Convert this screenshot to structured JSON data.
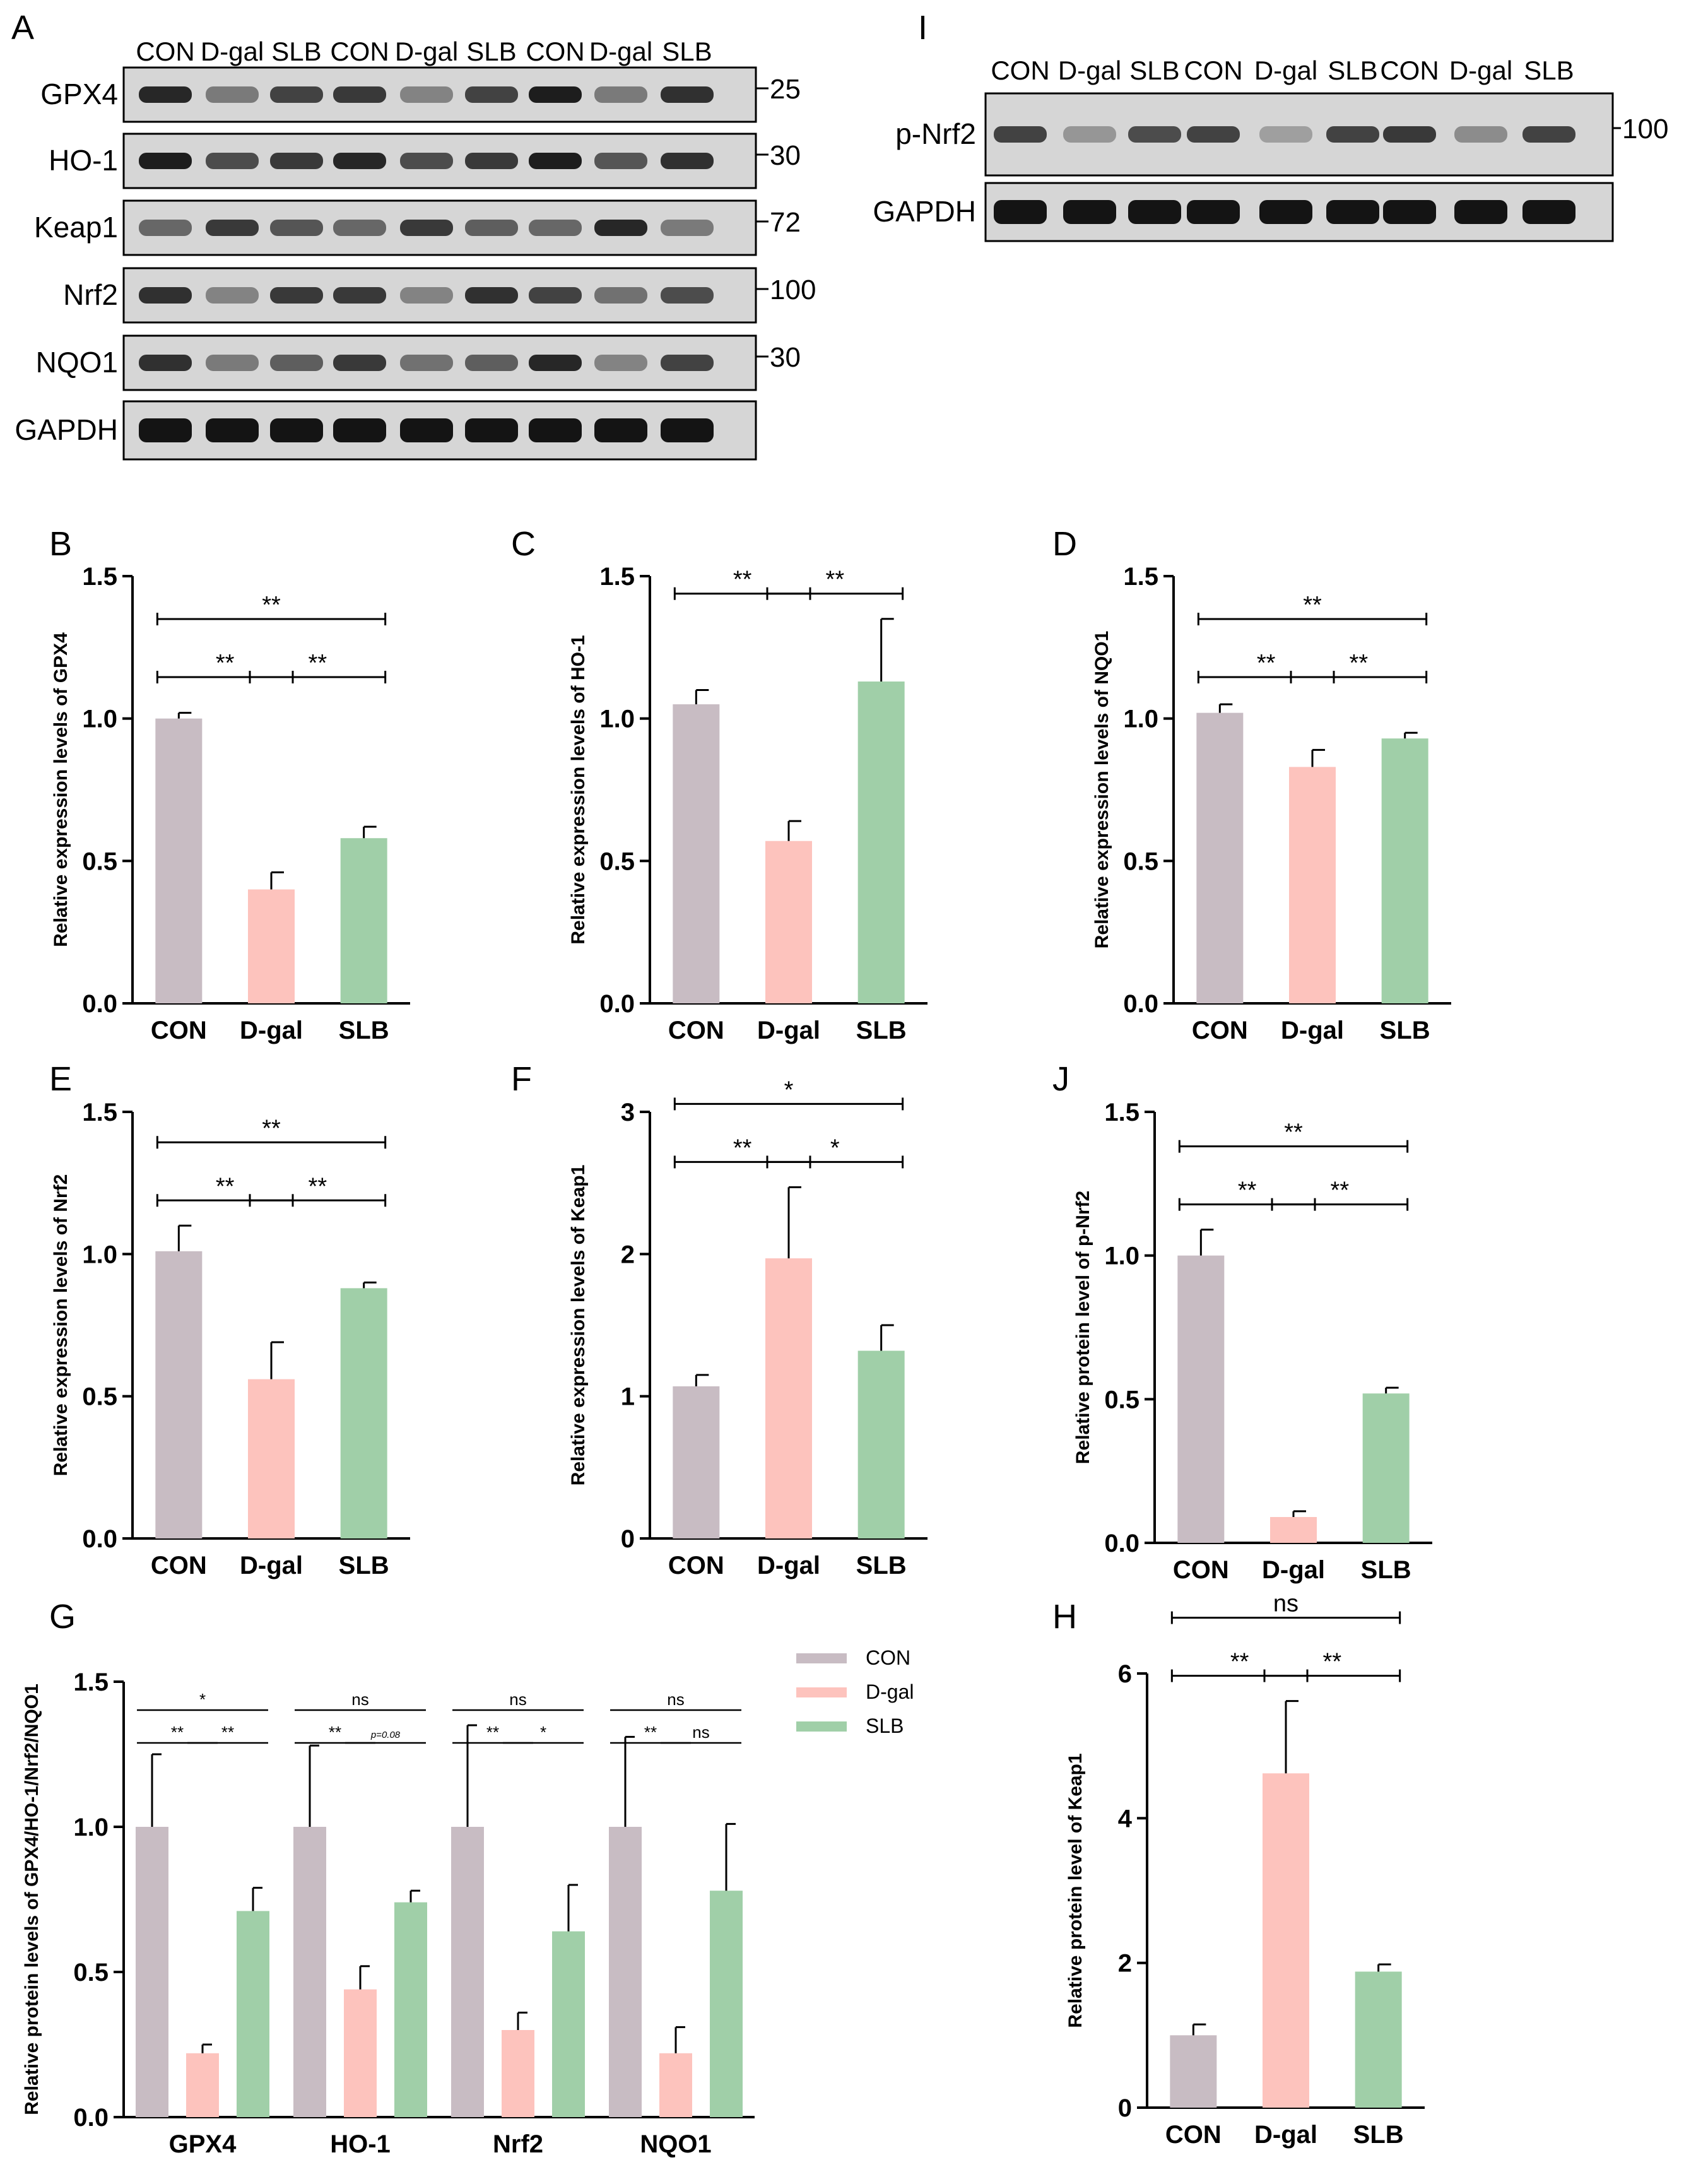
{
  "colors": {
    "CON": "#c8bcc3",
    "D-gal": "#fdc3bd",
    "SLB": "#a0cfa8",
    "blot_bg": "#d6d6d6",
    "band": "#1a1a1a"
  },
  "blotA": {
    "letter": "A",
    "columns": [
      "CON",
      "D-gal",
      "SLB",
      "CON",
      "D-gal",
      "SLB",
      "CON",
      "D-gal",
      "SLB"
    ],
    "rows": [
      {
        "label": "GPX4",
        "mw": "25",
        "intensity": [
          0.9,
          0.45,
          0.75,
          0.8,
          0.4,
          0.75,
          0.95,
          0.45,
          0.85
        ]
      },
      {
        "label": "HO-1",
        "mw": "30",
        "intensity": [
          0.95,
          0.7,
          0.8,
          0.9,
          0.7,
          0.8,
          0.95,
          0.65,
          0.85
        ]
      },
      {
        "label": "Keap1",
        "mw": "72",
        "intensity": [
          0.55,
          0.8,
          0.65,
          0.55,
          0.8,
          0.6,
          0.55,
          0.9,
          0.45
        ]
      },
      {
        "label": "Nrf2",
        "mw": "100",
        "intensity": [
          0.85,
          0.4,
          0.8,
          0.8,
          0.4,
          0.85,
          0.75,
          0.5,
          0.7
        ]
      },
      {
        "label": "NQO1",
        "mw": "30",
        "intensity": [
          0.85,
          0.45,
          0.6,
          0.8,
          0.5,
          0.6,
          0.9,
          0.4,
          0.75
        ]
      },
      {
        "label": "GAPDH",
        "mw": "",
        "intensity": [
          1,
          1,
          1,
          1,
          1,
          1,
          1,
          1,
          1
        ]
      }
    ]
  },
  "blotI": {
    "letter": "I",
    "columns": [
      "CON",
      "D-gal",
      "SLB",
      "CON",
      "D-gal",
      "SLB",
      "CON",
      "D-gal",
      "SLB"
    ],
    "rows": [
      {
        "label": "p-Nrf2",
        "mw": "100",
        "intensity": [
          0.75,
          0.3,
          0.7,
          0.75,
          0.25,
          0.75,
          0.8,
          0.35,
          0.75
        ]
      },
      {
        "label": "GAPDH",
        "mw": "",
        "intensity": [
          1,
          1,
          1,
          1,
          1,
          1,
          1,
          1,
          1
        ]
      }
    ]
  },
  "chart_data": [
    {
      "letter": "B",
      "type": "bar",
      "ylabel": "Relative expression levels of GPX4",
      "categories": [
        "CON",
        "D-gal",
        "SLB"
      ],
      "values": [
        1.0,
        0.4,
        0.58
      ],
      "errors": [
        0.02,
        0.06,
        0.04
      ],
      "ylim": [
        0,
        1.5
      ],
      "yticks": [
        "0.0",
        "0.5",
        "1.0",
        "1.5"
      ],
      "sig": [
        {
          "from": 0,
          "to": 1,
          "label": "**"
        },
        {
          "from": 1,
          "to": 2,
          "label": "**"
        },
        {
          "from": 0,
          "to": 2,
          "label": "**"
        }
      ]
    },
    {
      "letter": "C",
      "type": "bar",
      "ylabel": "Relative expression levels of HO-1",
      "categories": [
        "CON",
        "D-gal",
        "SLB"
      ],
      "values": [
        1.05,
        0.57,
        1.13
      ],
      "errors": [
        0.05,
        0.07,
        0.22
      ],
      "ylim": [
        0,
        1.5
      ],
      "yticks": [
        "0.0",
        "0.5",
        "1.0",
        "1.5"
      ],
      "sig": [
        {
          "from": 0,
          "to": 1,
          "label": "**"
        },
        {
          "from": 1,
          "to": 2,
          "label": "**"
        }
      ]
    },
    {
      "letter": "D",
      "type": "bar",
      "ylabel": "Relative expression levels of NQO1",
      "categories": [
        "CON",
        "D-gal",
        "SLB"
      ],
      "values": [
        1.02,
        0.83,
        0.93
      ],
      "errors": [
        0.03,
        0.06,
        0.02
      ],
      "ylim": [
        0,
        1.5
      ],
      "yticks": [
        "0.0",
        "0.5",
        "1.0",
        "1.5"
      ],
      "sig": [
        {
          "from": 0,
          "to": 1,
          "label": "**"
        },
        {
          "from": 1,
          "to": 2,
          "label": "**"
        },
        {
          "from": 0,
          "to": 2,
          "label": "**"
        }
      ]
    },
    {
      "letter": "E",
      "type": "bar",
      "ylabel": "Relative expression levels of Nrf2",
      "categories": [
        "CON",
        "D-gal",
        "SLB"
      ],
      "values": [
        1.01,
        0.56,
        0.88
      ],
      "errors": [
        0.09,
        0.13,
        0.02
      ],
      "ylim": [
        0,
        1.5
      ],
      "yticks": [
        "0.0",
        "0.5",
        "1.0",
        "1.5"
      ],
      "sig": [
        {
          "from": 0,
          "to": 1,
          "label": "**"
        },
        {
          "from": 1,
          "to": 2,
          "label": "**"
        },
        {
          "from": 0,
          "to": 2,
          "label": "**"
        }
      ]
    },
    {
      "letter": "F",
      "type": "bar",
      "ylabel": "Relative expression levels of Keap1",
      "categories": [
        "CON",
        "D-gal",
        "SLB"
      ],
      "values": [
        1.07,
        1.97,
        1.32
      ],
      "errors": [
        0.08,
        0.5,
        0.18
      ],
      "ylim": [
        0,
        3
      ],
      "yticks": [
        "0",
        "1",
        "2",
        "3"
      ],
      "sig": [
        {
          "from": 0,
          "to": 1,
          "label": "**"
        },
        {
          "from": 1,
          "to": 2,
          "label": "*"
        },
        {
          "from": 0,
          "to": 2,
          "label": "*"
        }
      ]
    },
    {
      "letter": "J",
      "type": "bar",
      "ylabel": "Relative protein level of p-Nrf2",
      "categories": [
        "CON",
        "D-gal",
        "SLB"
      ],
      "values": [
        1.0,
        0.09,
        0.52
      ],
      "errors": [
        0.09,
        0.02,
        0.02
      ],
      "ylim": [
        0,
        1.5
      ],
      "yticks": [
        "0.0",
        "0.5",
        "1.0",
        "1.5"
      ],
      "sig": [
        {
          "from": 0,
          "to": 1,
          "label": "**"
        },
        {
          "from": 1,
          "to": 2,
          "label": "**"
        },
        {
          "from": 0,
          "to": 2,
          "label": "**"
        }
      ]
    },
    {
      "letter": "H",
      "type": "bar",
      "ylabel": "Relative protein level of Keap1",
      "categories": [
        "CON",
        "D-gal",
        "SLB"
      ],
      "values": [
        1.0,
        4.62,
        1.88
      ],
      "errors": [
        0.15,
        1.0,
        0.1
      ],
      "ylim": [
        0,
        6
      ],
      "yticks": [
        "0",
        "2",
        "4",
        "6"
      ],
      "sig": [
        {
          "from": 0,
          "to": 1,
          "label": "**"
        },
        {
          "from": 1,
          "to": 2,
          "label": "**"
        },
        {
          "from": 0,
          "to": 2,
          "label": "ns"
        }
      ]
    },
    {
      "letter": "G",
      "type": "bar",
      "ylabel": "Relative protein levels of GPX4/HO-1/Nrf2/NQO1",
      "categories": [
        "GPX4",
        "HO-1",
        "Nrf2",
        "NQO1"
      ],
      "ylim": [
        0,
        1.5
      ],
      "yticks": [
        "0.0",
        "0.5",
        "1.0",
        "1.5"
      ],
      "series": [
        {
          "name": "CON",
          "values": [
            1.0,
            1.0,
            1.0,
            1.0
          ],
          "errors": [
            0.25,
            0.28,
            0.35,
            0.31
          ]
        },
        {
          "name": "D-gal",
          "values": [
            0.22,
            0.44,
            0.3,
            0.22
          ],
          "errors": [
            0.03,
            0.08,
            0.06,
            0.09
          ]
        },
        {
          "name": "SLB",
          "values": [
            0.71,
            0.74,
            0.64,
            0.78
          ],
          "errors": [
            0.08,
            0.04,
            0.16,
            0.23
          ]
        }
      ],
      "sig": [
        {
          "cat": 0,
          "from": 0,
          "to": 1,
          "label": "**"
        },
        {
          "cat": 0,
          "from": 1,
          "to": 2,
          "label": "**"
        },
        {
          "cat": 0,
          "from": 0,
          "to": 2,
          "label": "*"
        },
        {
          "cat": 1,
          "from": 0,
          "to": 1,
          "label": "**"
        },
        {
          "cat": 1,
          "from": 1,
          "to": 2,
          "label": "p=0.08"
        },
        {
          "cat": 1,
          "from": 0,
          "to": 2,
          "label": "ns"
        },
        {
          "cat": 2,
          "from": 0,
          "to": 1,
          "label": "**"
        },
        {
          "cat": 2,
          "from": 1,
          "to": 2,
          "label": "*"
        },
        {
          "cat": 2,
          "from": 0,
          "to": 2,
          "label": "ns"
        },
        {
          "cat": 3,
          "from": 0,
          "to": 1,
          "label": "**"
        },
        {
          "cat": 3,
          "from": 1,
          "to": 2,
          "label": "ns"
        },
        {
          "cat": 3,
          "from": 0,
          "to": 2,
          "label": "ns"
        }
      ]
    }
  ]
}
